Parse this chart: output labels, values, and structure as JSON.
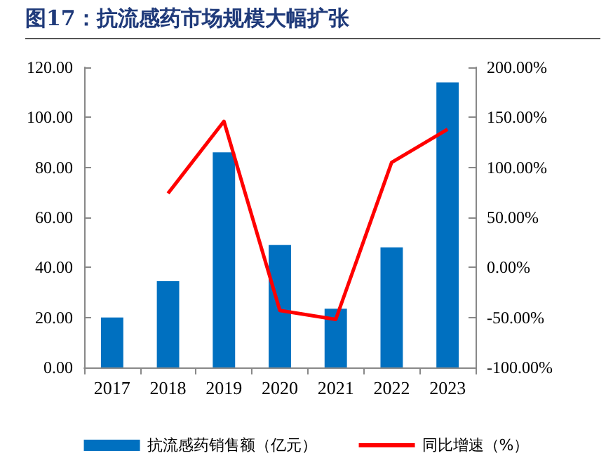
{
  "chart_data": {
    "type": "bar",
    "title": "图17：抗流感药市场规模大幅扩张",
    "categories": [
      "2017",
      "2018",
      "2019",
      "2020",
      "2021",
      "2022",
      "2023"
    ],
    "series": [
      {
        "name": "抗流感药销售额（亿元）",
        "color": "#0070c0",
        "values": [
          20,
          34.5,
          86,
          49,
          23.5,
          48,
          114
        ]
      },
      {
        "name": "同比增速（%）",
        "type": "line",
        "axis": "y2",
        "color": "#ff0000",
        "values": [
          null,
          74,
          146,
          -43,
          -52,
          105,
          138
        ]
      }
    ],
    "ylim": [
      0,
      120
    ],
    "yticks": [
      {
        "value": 0,
        "label": "0.00"
      },
      {
        "value": 20,
        "label": "20.00"
      },
      {
        "value": 40,
        "label": "40.00"
      },
      {
        "value": 60,
        "label": "60.00"
      },
      {
        "value": 80,
        "label": "80.00"
      },
      {
        "value": 100,
        "label": "100.00"
      },
      {
        "value": 120,
        "label": "120.00"
      }
    ],
    "y2lim": [
      -100,
      200
    ],
    "y2ticks": [
      {
        "value": -100,
        "label": "-100.00%"
      },
      {
        "value": -50,
        "label": "-50.00%"
      },
      {
        "value": 0,
        "label": "0.00%"
      },
      {
        "value": 50,
        "label": "50.00%"
      },
      {
        "value": 100,
        "label": "100.00%"
      },
      {
        "value": 150,
        "label": "150.00%"
      },
      {
        "value": 200,
        "label": "200.00%"
      }
    ],
    "grid": false,
    "legend": "bottom",
    "marker": "none",
    "line_style": "solid"
  }
}
